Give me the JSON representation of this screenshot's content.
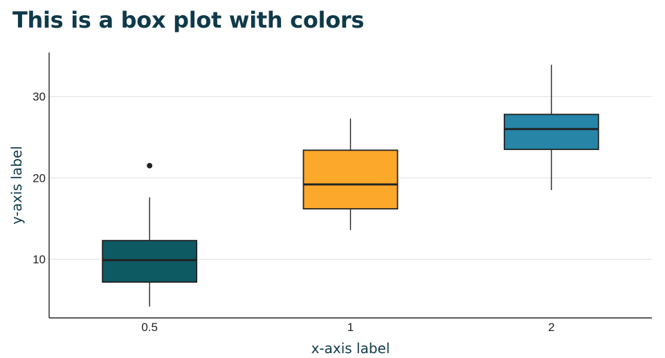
{
  "chart_data": {
    "type": "box",
    "title": "This is a box plot with colors",
    "xlabel": "x-axis label",
    "ylabel": "y-axis label",
    "ylim": [
      2.8,
      35.4
    ],
    "yticks": [
      10,
      20,
      30
    ],
    "grid": true,
    "categories": [
      "0.5",
      "1",
      "2"
    ],
    "boxes": [
      {
        "category": "0.5",
        "min": 4.2,
        "q1": 7.2,
        "median": 9.9,
        "q3": 12.3,
        "max": 17.6,
        "outliers": [
          21.5
        ],
        "color": "#0e5a63"
      },
      {
        "category": "1",
        "min": 13.6,
        "q1": 16.2,
        "median": 19.2,
        "q3": 23.4,
        "max": 27.3,
        "outliers": [],
        "color": "#fca82a"
      },
      {
        "category": "2",
        "min": 18.5,
        "q1": 23.5,
        "median": 26.0,
        "q3": 27.8,
        "max": 33.9,
        "outliers": [],
        "color": "#2785a8"
      }
    ]
  }
}
